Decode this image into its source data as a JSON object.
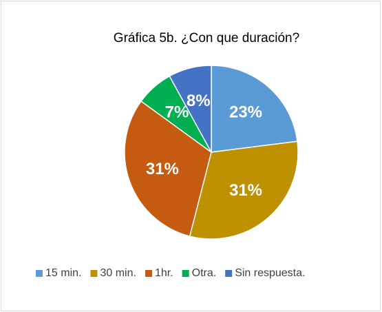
{
  "chart_data": {
    "type": "pie",
    "title": "Gráfica 5b. ¿Con que duración?",
    "categories": [
      "15 min.",
      "30 min.",
      "1hr.",
      "Otra.",
      "Sin respuesta."
    ],
    "values": [
      23,
      31,
      31,
      7,
      8
    ],
    "value_labels": [
      "23%",
      "31%",
      "31%",
      "7%",
      "8%"
    ],
    "colors": [
      "#5b9bd5",
      "#bf9000",
      "#c55a11",
      "#00b050",
      "#4472c4"
    ],
    "legend": "bottom"
  }
}
